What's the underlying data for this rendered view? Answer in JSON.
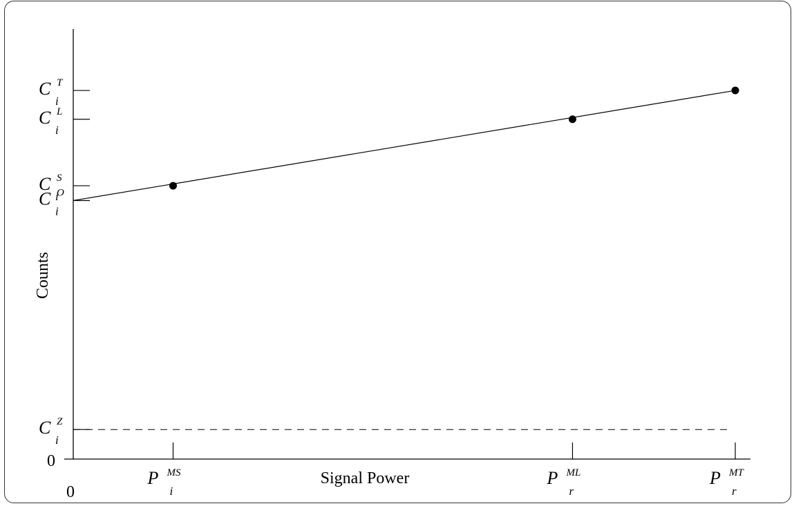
{
  "chart_data": {
    "type": "line",
    "xlabel": "Signal Power",
    "ylabel": "Counts",
    "x_origin_label": "0",
    "y_origin_label": "0",
    "x_ticks": [
      {
        "sym": "P",
        "sup": "MS",
        "sub": "i",
        "x": 1.0
      },
      {
        "sym": "P",
        "sup": "ML",
        "sub": "r",
        "x": 5.0
      },
      {
        "sym": "P",
        "sup": "MT",
        "sub": "r",
        "x": 6.63
      }
    ],
    "y_ticks": [
      {
        "sym": "C",
        "sup": "T",
        "sub": "i",
        "y": 9.98
      },
      {
        "sym": "C",
        "sup": "L",
        "sub": "i",
        "y": 9.2
      },
      {
        "sym": "C",
        "sup": "S",
        "sub": "i",
        "y": 7.4
      },
      {
        "sym": "C",
        "sup": "O",
        "sub": "i",
        "y": 7.0
      },
      {
        "sym": "C",
        "sup": "Z",
        "sub": "i",
        "y": 0.8
      }
    ],
    "series": [
      {
        "x": [
          1.0,
          5.0,
          6.63
        ],
        "y": [
          7.4,
          9.2,
          9.98
        ]
      }
    ],
    "calibration_line": {
      "x": [
        0,
        6.63
      ],
      "y": [
        7.0,
        9.98
      ]
    },
    "dashed_line_y": 0.8,
    "xlim": [
      0,
      6.63
    ],
    "ylim": [
      0,
      10.99
    ],
    "grid": false
  }
}
